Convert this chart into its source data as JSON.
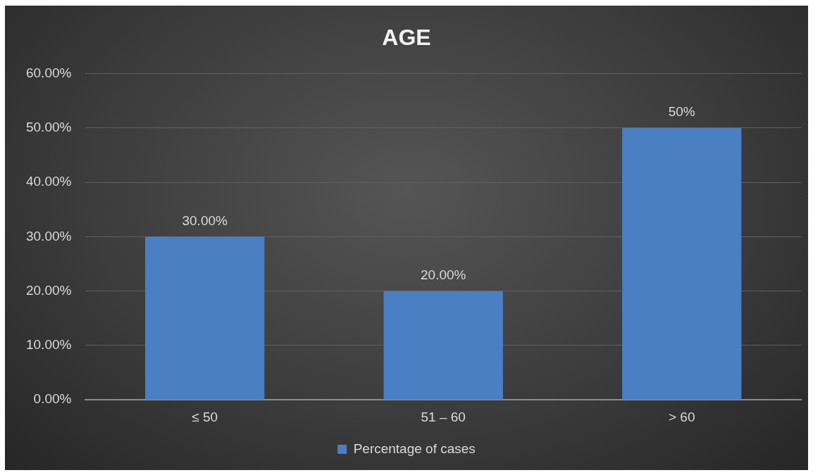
{
  "chart_data": {
    "type": "bar",
    "title": "AGE",
    "categories": [
      "≤ 50",
      "51 – 60",
      "> 60"
    ],
    "series": [
      {
        "name": "Percentage of cases",
        "color": "#4a7fc4",
        "values": [
          30,
          20,
          50
        ],
        "value_labels": [
          "30.00%",
          "20.00%",
          "50%"
        ]
      }
    ],
    "ylim": [
      0,
      60
    ],
    "yticks": [
      {
        "value": 0,
        "label": "0.00%"
      },
      {
        "value": 10,
        "label": "10.00%"
      },
      {
        "value": 20,
        "label": "20.00%"
      },
      {
        "value": 30,
        "label": "30.00%"
      },
      {
        "value": 40,
        "label": "40.00%"
      },
      {
        "value": 50,
        "label": "50.00%"
      },
      {
        "value": 60,
        "label": "60.00%"
      }
    ],
    "grid": "y",
    "legend": "bottom"
  }
}
